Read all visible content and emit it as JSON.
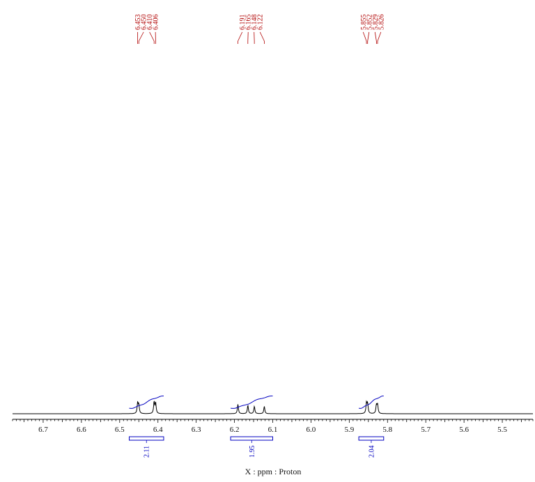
{
  "chart_data": {
    "type": "line",
    "xlabel": "X : ppm : Proton",
    "xlim": [
      6.78,
      5.42
    ],
    "x_ticks": [
      6.7,
      6.6,
      6.5,
      6.4,
      6.3,
      6.2,
      6.1,
      6.0,
      5.9,
      5.8,
      5.7,
      5.6,
      5.5
    ],
    "x_tick_labels": [
      "6.7",
      "6.6",
      "6.5",
      "6.4",
      "6.3",
      "6.2",
      "6.1",
      "6.0",
      "5.9",
      "5.8",
      "5.7",
      "5.6",
      "5.5"
    ],
    "peak_labels": [
      {
        "label": "6.453",
        "x": 6.453,
        "height": 0.5
      },
      {
        "label": "6.450",
        "x": 6.45,
        "height": 0.4
      },
      {
        "label": "6.410",
        "x": 6.41,
        "height": 0.55
      },
      {
        "label": "6.406",
        "x": 6.406,
        "height": 0.5
      },
      {
        "label": "6.191",
        "x": 6.191,
        "height": 0.45
      },
      {
        "label": "6.165",
        "x": 6.165,
        "height": 0.4
      },
      {
        "label": "6.148",
        "x": 6.148,
        "height": 0.35
      },
      {
        "label": "6.122",
        "x": 6.122,
        "height": 0.35
      },
      {
        "label": "5.855",
        "x": 5.855,
        "height": 0.5
      },
      {
        "label": "5.852",
        "x": 5.852,
        "height": 0.45
      },
      {
        "label": "5.829",
        "x": 5.829,
        "height": 0.4
      },
      {
        "label": "5.826",
        "x": 5.826,
        "height": 0.42
      }
    ],
    "integrals": [
      {
        "label": "2.11",
        "from": 6.475,
        "to": 6.385
      },
      {
        "label": "1.95",
        "from": 6.21,
        "to": 6.1
      },
      {
        "label": "2.04",
        "from": 5.875,
        "to": 5.81
      }
    ],
    "colors": {
      "spectrum": "#000000",
      "peak_labels": "#b00000",
      "integrals": "#0000c0"
    }
  }
}
